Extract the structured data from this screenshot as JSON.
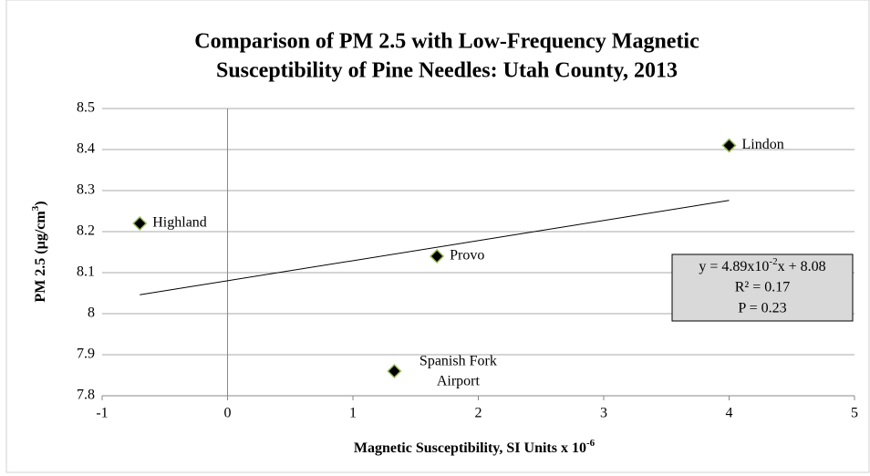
{
  "chart_data": {
    "type": "scatter",
    "title": [
      "Comparison of PM 2.5 with Low-Frequency Magnetic",
      "Susceptibility of Pine Needles: Utah County, 2013"
    ],
    "x_label": {
      "text": "Magnetic Susceptibility, SI Units x 10",
      "sup": "-6"
    },
    "y_label": {
      "text": "PM 2.5 (µg/cm",
      "sup": "3",
      "end": ")"
    },
    "series": [
      {
        "color": "#000000",
        "edge": "#9bbb59",
        "x": [
          -0.7,
          1.67,
          1.33,
          4.0
        ],
        "values": [
          8.22,
          8.14,
          7.86,
          8.41
        ],
        "labels": [
          [
            "Highland"
          ],
          [
            "Provo"
          ],
          [
            "Spanish Fork",
            "Airport"
          ],
          [
            "Lindon"
          ]
        ]
      }
    ],
    "trendline": {
      "x": [
        -0.7,
        4.0
      ],
      "values": [
        8.046,
        8.276
      ],
      "color": "#000000"
    },
    "annotation": {
      "eq": "y = 4.89x10",
      "eq_sup": "-2",
      "eq_end": "x + 8.08",
      "r2": "R² = 0.17",
      "p": "P = 0.23"
    },
    "xlim": [
      -1,
      5
    ],
    "xticks": [
      -1,
      0,
      1,
      2,
      3,
      4,
      5
    ],
    "ylim": [
      7.8,
      8.5
    ],
    "yticks": [
      7.8,
      7.9,
      8,
      8.1,
      8.2,
      8.3,
      8.4,
      8.5
    ],
    "grid": true
  }
}
